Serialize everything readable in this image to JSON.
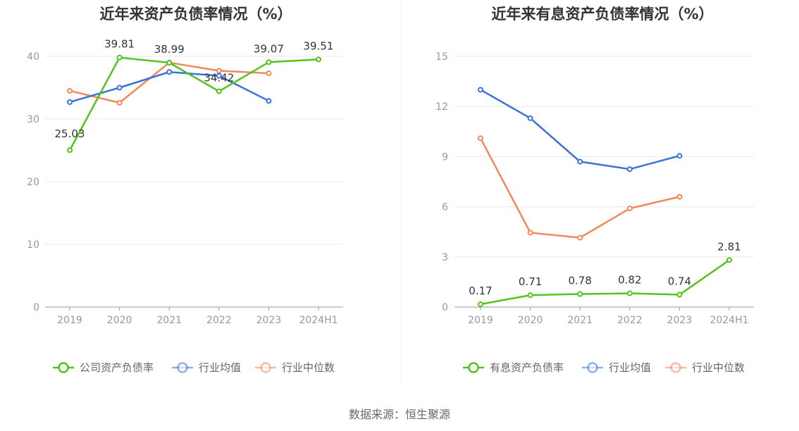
{
  "chart_data": [
    {
      "type": "line",
      "title": "近年来资产负债率情况（%）",
      "categories": [
        "2019",
        "2020",
        "2021",
        "2022",
        "2023",
        "2024H1"
      ],
      "ylim": [
        0,
        40
      ],
      "yticks": [
        0,
        10,
        20,
        30,
        40
      ],
      "yticklabels": [
        "0",
        "10",
        "20",
        "30",
        "40"
      ],
      "grid": true,
      "legend_position": "bottom",
      "series": [
        {
          "name": "公司资产负债率",
          "color": "#52c41a",
          "values": [
            25.03,
            39.81,
            38.99,
            34.42,
            39.07,
            39.51
          ],
          "labels": [
            "25.03",
            "39.81",
            "38.99",
            "34.42",
            "39.07",
            "39.51"
          ]
        },
        {
          "name": "行业均值",
          "color": "#3a72d9",
          "values": [
            32.7,
            35.0,
            37.5,
            36.9,
            32.9,
            null
          ]
        },
        {
          "name": "行业中位数",
          "color": "#f08a5d",
          "values": [
            34.5,
            32.6,
            39.0,
            37.7,
            37.3,
            null
          ]
        }
      ]
    },
    {
      "type": "line",
      "title": "近年来有息资产负债率情况（%）",
      "categories": [
        "2019",
        "2020",
        "2021",
        "2022",
        "2023",
        "2024H1"
      ],
      "ylim": [
        0,
        15
      ],
      "yticks": [
        0,
        3,
        6,
        9,
        12,
        15
      ],
      "yticklabels": [
        "0",
        "3",
        "6",
        "9",
        "12",
        "15"
      ],
      "grid": true,
      "legend_position": "bottom",
      "series": [
        {
          "name": "有息资产负债率",
          "color": "#52c41a",
          "values": [
            0.17,
            0.71,
            0.78,
            0.82,
            0.74,
            2.81
          ],
          "labels": [
            "0.17",
            "0.71",
            "0.78",
            "0.82",
            "0.74",
            "2.81"
          ]
        },
        {
          "name": "行业均值",
          "color": "#3a72d9",
          "values": [
            13.0,
            11.3,
            8.7,
            8.25,
            9.05,
            null
          ]
        },
        {
          "name": "行业中位数",
          "color": "#f08a5d",
          "values": [
            10.1,
            4.45,
            4.15,
            5.9,
            6.6,
            null
          ]
        }
      ]
    }
  ],
  "source": "数据来源：恒生聚源"
}
